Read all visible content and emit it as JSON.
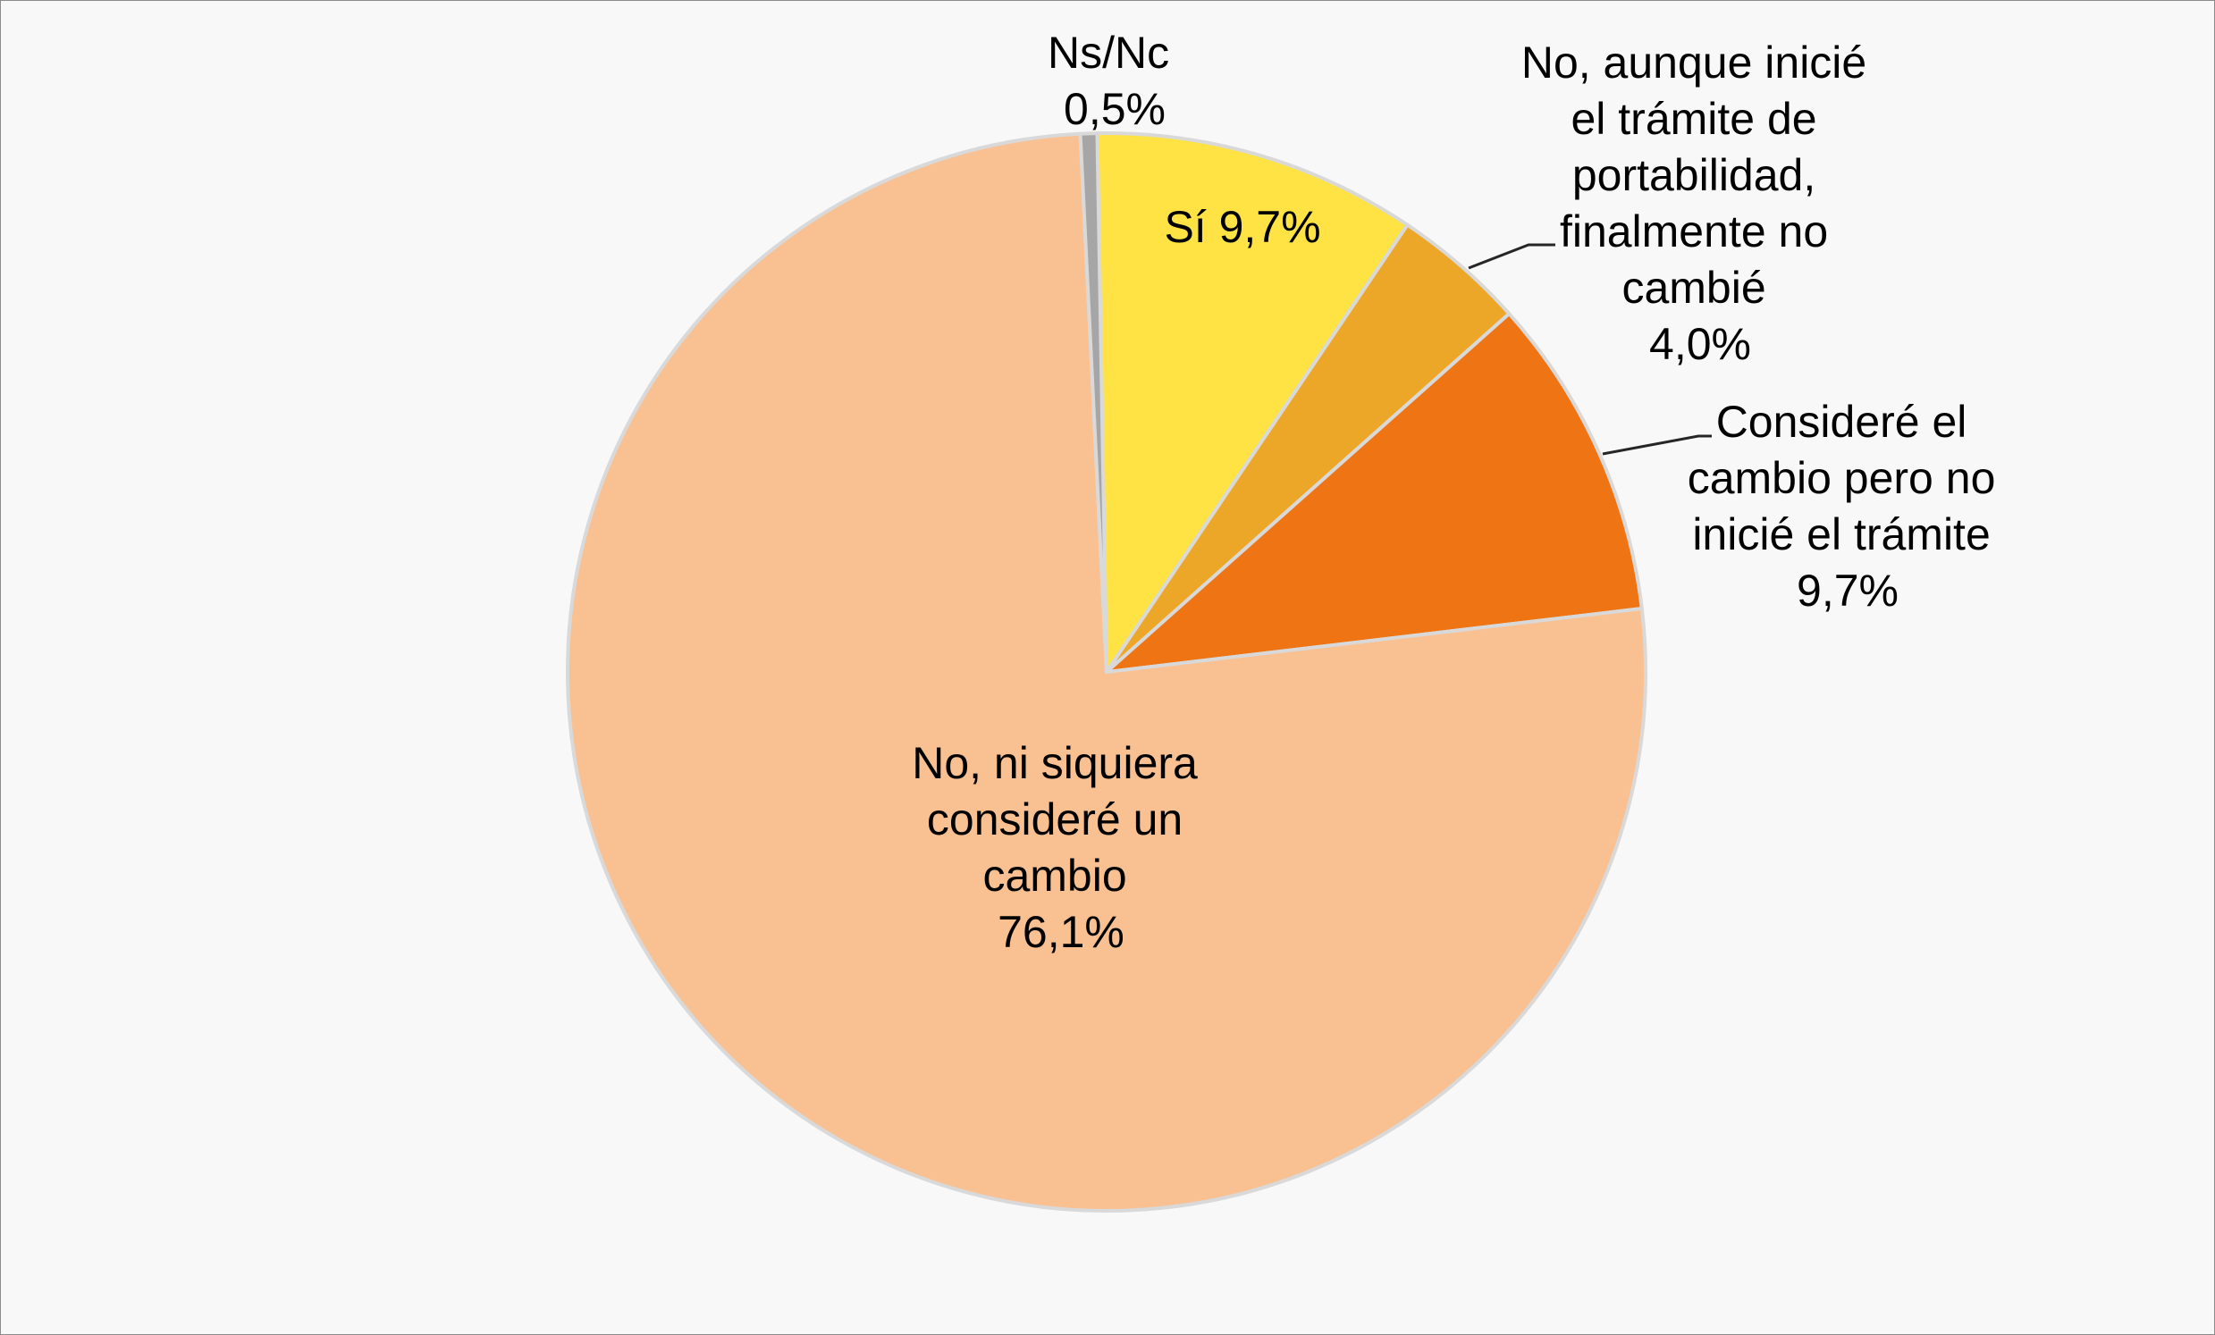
{
  "chart_data": {
    "type": "pie",
    "title": "",
    "start_angle_deg": -1,
    "direction": "clockwise",
    "slices": [
      {
        "id": "si",
        "label_lines": [
          "Sí 9,7%"
        ],
        "value": 9.7,
        "value_label": "9,7%",
        "color": "#FFE345"
      },
      {
        "id": "no-aunque",
        "label_lines": [
          "No, aunque inicié",
          "el trámite de",
          "portabilidad,",
          "finalmente no",
          "cambié",
          "4,0%"
        ],
        "value": 4.0,
        "value_label": "4,0%",
        "color": "#EDA728"
      },
      {
        "id": "considere",
        "label_lines": [
          "Consideré el",
          "cambio pero no",
          "inicié el trámite",
          "9,7%"
        ],
        "value": 9.7,
        "value_label": "9,7%",
        "color": "#EE7414"
      },
      {
        "id": "no-ni-siquiera",
        "label_lines": [
          "No, ni siquiera",
          "consideré un",
          "cambio",
          "76,1%"
        ],
        "value": 76.1,
        "value_label": "76,1%",
        "color": "#F9C192"
      },
      {
        "id": "ns-nc",
        "label_lines": [
          "Ns/Nc",
          "0,5%"
        ],
        "value": 0.5,
        "value_label": "0,5%",
        "color": "#A6A6A6"
      }
    ]
  }
}
